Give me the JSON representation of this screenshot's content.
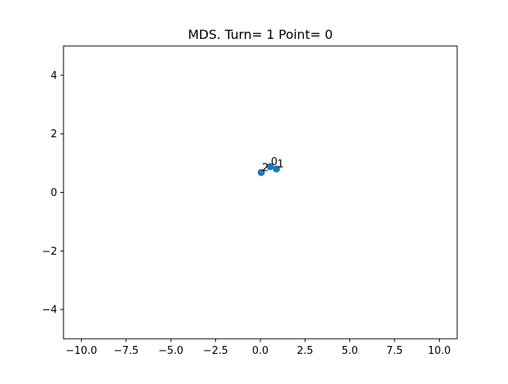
{
  "chart_data": {
    "type": "scatter",
    "title": "MDS. Turn= 1 Point= 0",
    "xlabel": "",
    "ylabel": "",
    "xlim": [
      -11.0,
      11.0
    ],
    "ylim": [
      -5.0,
      5.0
    ],
    "grid": false,
    "x_ticks": [
      -10.0,
      -7.5,
      -5.0,
      -2.5,
      0.0,
      2.5,
      5.0,
      7.5,
      10.0
    ],
    "x_tick_labels": [
      "−10.0",
      "−7.5",
      "−5.0",
      "−2.5",
      "0.0",
      "2.5",
      "5.0",
      "7.5",
      "10.0"
    ],
    "y_ticks": [
      -4,
      -2,
      0,
      2,
      4
    ],
    "y_tick_labels": [
      "−4",
      "−2",
      "0",
      "2",
      "4"
    ],
    "series": [
      {
        "color": "#1f77b4",
        "points": [
          {
            "label": "0",
            "x": 0.55,
            "y": 0.88
          },
          {
            "label": "1",
            "x": 0.9,
            "y": 0.8
          },
          {
            "label": "2",
            "x": 0.05,
            "y": 0.68
          }
        ]
      }
    ]
  }
}
